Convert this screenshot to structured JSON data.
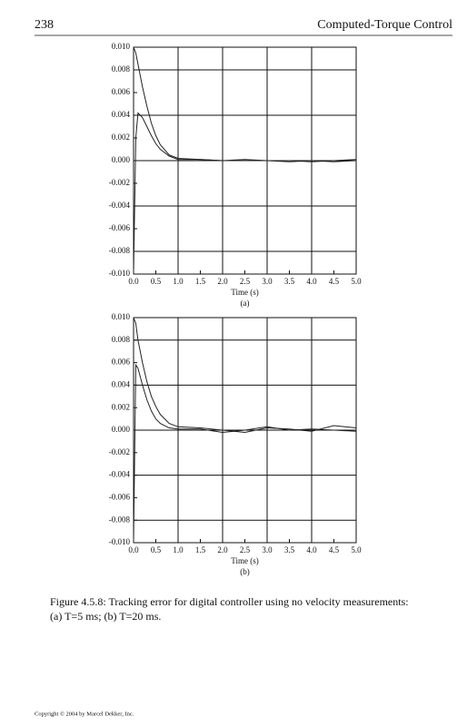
{
  "header": {
    "page_number": "238",
    "running_title": "Computed-Torque Control"
  },
  "chart_data": [
    {
      "type": "line",
      "xlabel": "Time (s)",
      "sublabel": "(a)",
      "xlim": [
        0,
        5
      ],
      "ylim": [
        -0.01,
        0.01
      ],
      "xticks": [
        {
          "value": 0,
          "label": "0.0"
        },
        {
          "value": 0.5,
          "label": "0.5"
        },
        {
          "value": 1,
          "label": "1.0"
        },
        {
          "value": 1.5,
          "label": "1.5"
        },
        {
          "value": 2,
          "label": "2.0"
        },
        {
          "value": 2.5,
          "label": "2.5"
        },
        {
          "value": 3,
          "label": "3.0"
        },
        {
          "value": 3.5,
          "label": "3.5"
        },
        {
          "value": 4,
          "label": "4.0"
        },
        {
          "value": 4.5,
          "label": "4.5"
        },
        {
          "value": 5,
          "label": "5.0"
        }
      ],
      "yticks": [
        {
          "value": -0.01,
          "label": "-0.010"
        },
        {
          "value": -0.008,
          "label": "-0.008"
        },
        {
          "value": -0.006,
          "label": "-0.006"
        },
        {
          "value": -0.004,
          "label": "-0.004"
        },
        {
          "value": -0.002,
          "label": "-0.002"
        },
        {
          "value": 0,
          "label": "0.000"
        },
        {
          "value": 0.002,
          "label": "0.002"
        },
        {
          "value": 0.004,
          "label": "0.004"
        },
        {
          "value": 0.006,
          "label": "0.006"
        },
        {
          "value": 0.008,
          "label": "0.008"
        },
        {
          "value": 0.01,
          "label": "0.010"
        }
      ],
      "grid": true,
      "x": [
        0,
        0.05,
        0.1,
        0.2,
        0.3,
        0.4,
        0.5,
        0.6,
        0.8,
        1.0,
        1.5,
        2.0,
        2.5,
        3.0,
        3.5,
        4.0,
        4.5,
        5.0
      ],
      "series": [
        {
          "color": "#222222",
          "values": [
            0.01,
            0.0095,
            0.0085,
            0.0065,
            0.0048,
            0.0033,
            0.0022,
            0.0014,
            0.0005,
            0.0002,
            0.0001,
            0,
            0,
            0,
            -0.0001,
            0,
            -0.0001,
            0
          ]
        },
        {
          "color": "#222222",
          "values": [
            -0.01,
            0.002,
            0.0042,
            0.0038,
            0.003,
            0.0022,
            0.0015,
            0.001,
            0.0004,
            0.0001,
            0.0001,
            0,
            0.0001,
            0,
            0,
            -0.0001,
            0,
            0.0001
          ]
        }
      ]
    },
    {
      "type": "line",
      "xlabel": "Time (s)",
      "sublabel": "(b)",
      "xlim": [
        0,
        5
      ],
      "ylim": [
        -0.01,
        0.01
      ],
      "xticks": [
        {
          "value": 0,
          "label": "0.0"
        },
        {
          "value": 0.5,
          "label": "0.5"
        },
        {
          "value": 1,
          "label": "1.0"
        },
        {
          "value": 1.5,
          "label": "1.5"
        },
        {
          "value": 2,
          "label": "2.0"
        },
        {
          "value": 2.5,
          "label": "2.5"
        },
        {
          "value": 3,
          "label": "3.0"
        },
        {
          "value": 3.5,
          "label": "3.5"
        },
        {
          "value": 4,
          "label": "4.0"
        },
        {
          "value": 4.5,
          "label": "4.5"
        },
        {
          "value": 5,
          "label": "5.0"
        }
      ],
      "yticks": [
        {
          "value": -0.01,
          "label": "-0.010"
        },
        {
          "value": -0.008,
          "label": "-0.008"
        },
        {
          "value": -0.006,
          "label": "-0.006"
        },
        {
          "value": -0.004,
          "label": "-0.004"
        },
        {
          "value": -0.002,
          "label": "-0.002"
        },
        {
          "value": 0,
          "label": "0.000"
        },
        {
          "value": 0.002,
          "label": "0.002"
        },
        {
          "value": 0.004,
          "label": "0.004"
        },
        {
          "value": 0.006,
          "label": "0.006"
        },
        {
          "value": 0.008,
          "label": "0.008"
        },
        {
          "value": 0.01,
          "label": "0.010"
        }
      ],
      "grid": true,
      "x": [
        0,
        0.05,
        0.1,
        0.2,
        0.3,
        0.4,
        0.5,
        0.6,
        0.8,
        1.0,
        1.5,
        2.0,
        2.5,
        3.0,
        3.5,
        4.0,
        4.5,
        5.0
      ],
      "series": [
        {
          "color": "#222222",
          "values": [
            0.01,
            0.0095,
            0.008,
            0.006,
            0.0043,
            0.003,
            0.0021,
            0.0014,
            0.0006,
            0.0003,
            0.0002,
            0,
            -0.0002,
            0.0002,
            0.0001,
            -0.0001,
            0.0004,
            0.0002
          ]
        },
        {
          "color": "#222222",
          "values": [
            -0.01,
            0.0058,
            0.0055,
            0.004,
            0.0027,
            0.0017,
            0.001,
            0.0006,
            0.0002,
            0.0001,
            0.0001,
            -0.0002,
            0,
            0.0003,
            0,
            0.0001,
            0,
            -0.0001
          ]
        }
      ]
    }
  ],
  "caption": [
    "Figure 4.5.8: Tracking error for digital controller using no velocity measurements:",
    "(a) T=5 ms; (b) T=20 ms."
  ],
  "footer": "Copyright © 2004 by Marcel Dekker, Inc."
}
